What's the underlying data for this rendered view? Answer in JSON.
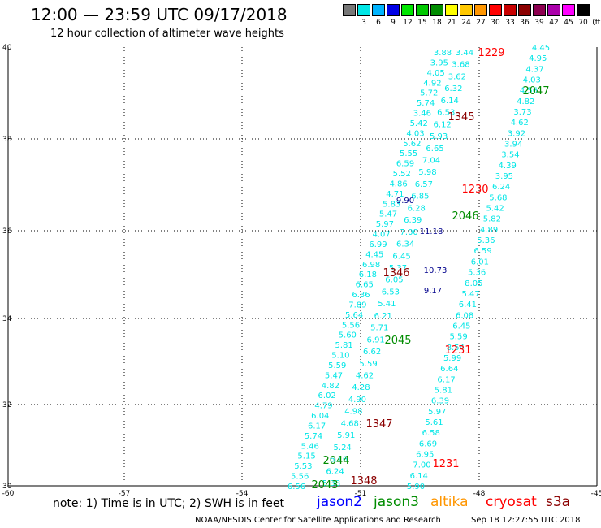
{
  "header": {
    "title": "12:00 — 23:59 UTC 09/17/2018",
    "subtitle": "12 hour collection of altimeter wave heights"
  },
  "legend": {
    "unit": "(ft)",
    "items": [
      {
        "label": "",
        "color": "#777777"
      },
      {
        "label": "3",
        "color": "#00e6e6"
      },
      {
        "label": "6",
        "color": "#00b4ff"
      },
      {
        "label": "9",
        "color": "#0000e6"
      },
      {
        "label": "12",
        "color": "#00e600"
      },
      {
        "label": "15",
        "color": "#00c800"
      },
      {
        "label": "18",
        "color": "#008c00"
      },
      {
        "label": "21",
        "color": "#ffff00"
      },
      {
        "label": "24",
        "color": "#ffc800"
      },
      {
        "label": "27",
        "color": "#ff9600"
      },
      {
        "label": "30",
        "color": "#ff0000"
      },
      {
        "label": "33",
        "color": "#c80000"
      },
      {
        "label": "36",
        "color": "#8b0000"
      },
      {
        "label": "39",
        "color": "#8c0050"
      },
      {
        "label": "42",
        "color": "#aa00aa"
      },
      {
        "label": "45",
        "color": "#ff00ff"
      },
      {
        "label": "70",
        "color": "#000000"
      }
    ]
  },
  "axes": {
    "lat_ticks": [
      "40",
      "38",
      "36",
      "34",
      "32",
      "30"
    ],
    "lon_ticks": [
      "-60",
      "-57",
      "-54",
      "-51",
      "-48",
      "-45"
    ]
  },
  "map": {
    "track_labels": [
      {
        "text": "1229",
        "color": "#ff0000"
      },
      {
        "text": "2047",
        "color": "#008c00"
      },
      {
        "text": "1345",
        "color": "#8b0000"
      },
      {
        "text": "1230",
        "color": "#ff0000"
      },
      {
        "text": "2046",
        "color": "#008c00"
      },
      {
        "text": "1346",
        "color": "#8b0000"
      },
      {
        "text": "2045",
        "color": "#008c00"
      },
      {
        "text": "1231",
        "color": "#ff0000"
      },
      {
        "text": "1347",
        "color": "#8b0000"
      },
      {
        "text": "2044",
        "color": "#008c00"
      },
      {
        "text": "1231",
        "color": "#ff0000"
      },
      {
        "text": "1348",
        "color": "#8b0000"
      },
      {
        "text": "2043",
        "color": "#008c00"
      }
    ],
    "tracks": [
      {
        "color": "#00e6e6",
        "values": [
          "3.88",
          "3.95",
          "4.05",
          "4.92",
          "5.72",
          "5.74",
          "3.46",
          "5.42",
          "4.03",
          "5.62",
          "5.55",
          "6.59",
          "5.52",
          "4.86",
          "4.71",
          "5.83",
          "5.47",
          "5.97",
          "4.07",
          "6.99",
          "4.45",
          "6.98",
          "6.18",
          "6.65",
          "6.36",
          "7.89",
          "5.64",
          "5.56",
          "5.60",
          "5.81",
          "5.10",
          "5.59",
          "5.47",
          "4.82",
          "6.02",
          "4.79",
          "6.04",
          "6.17",
          "5.74",
          "5.46",
          "5.15",
          "5.53",
          "5.56",
          "6.56"
        ]
      },
      {
        "color": "#00e6e6",
        "values": [
          "3.44",
          "3.68",
          "3.62",
          "6.32",
          "6.14",
          "6.53",
          "6.12",
          "5.93",
          "6.65",
          "7.04",
          "5.98",
          "6.57",
          "6.85",
          "6.28",
          "6.39",
          "7.00",
          "6.34",
          "6.45",
          "5.37",
          "6.05",
          "6.53",
          "5.41",
          "6.21",
          "5.71",
          "6.91",
          "6.62",
          "5.59",
          "4.62",
          "4.28",
          "4.90",
          "4.98",
          "4.68",
          "5.91",
          "5.24",
          "6.16",
          "6.24",
          "5.38"
        ]
      },
      {
        "color": "#00e6e6",
        "values": [
          "4.45",
          "4.95",
          "4.37",
          "4.03",
          "4.56",
          "4.82",
          "3.73",
          "4.62",
          "3.92",
          "3.94",
          "3.54",
          "4.39",
          "3.95",
          "6.24",
          "5.68",
          "5.42",
          "5.82",
          "4.89",
          "5.36",
          "6.59",
          "6.01",
          "5.36",
          "8.05",
          "5.47",
          "6.41",
          "6.08",
          "6.45",
          "5.59",
          "8.54",
          "5.99",
          "6.64",
          "6.17",
          "5.81",
          "6.39",
          "5.97",
          "5.61",
          "6.58",
          "6.69",
          "6.95",
          "7.00",
          "6.14",
          "5.90"
        ]
      },
      {
        "color": "#00008c",
        "values": [
          "9.90",
          "11.18",
          "10.73",
          "9.17"
        ]
      }
    ]
  },
  "note": {
    "text": "note: 1) Time is in UTC; 2) SWH is in feet"
  },
  "satellites": [
    {
      "name": "jason2",
      "color": "#0000ff"
    },
    {
      "name": "jason3",
      "color": "#008c00"
    },
    {
      "name": "altika",
      "color": "#ff9600"
    },
    {
      "name": "cryosat",
      "color": "#ff0000"
    },
    {
      "name": "s3a",
      "color": "#8b0000"
    }
  ],
  "footer": {
    "left": "NOAA/NESDIS Center for Satellite Applications and Research",
    "right": "Sep 18 12:27:55 UTC 2018"
  }
}
